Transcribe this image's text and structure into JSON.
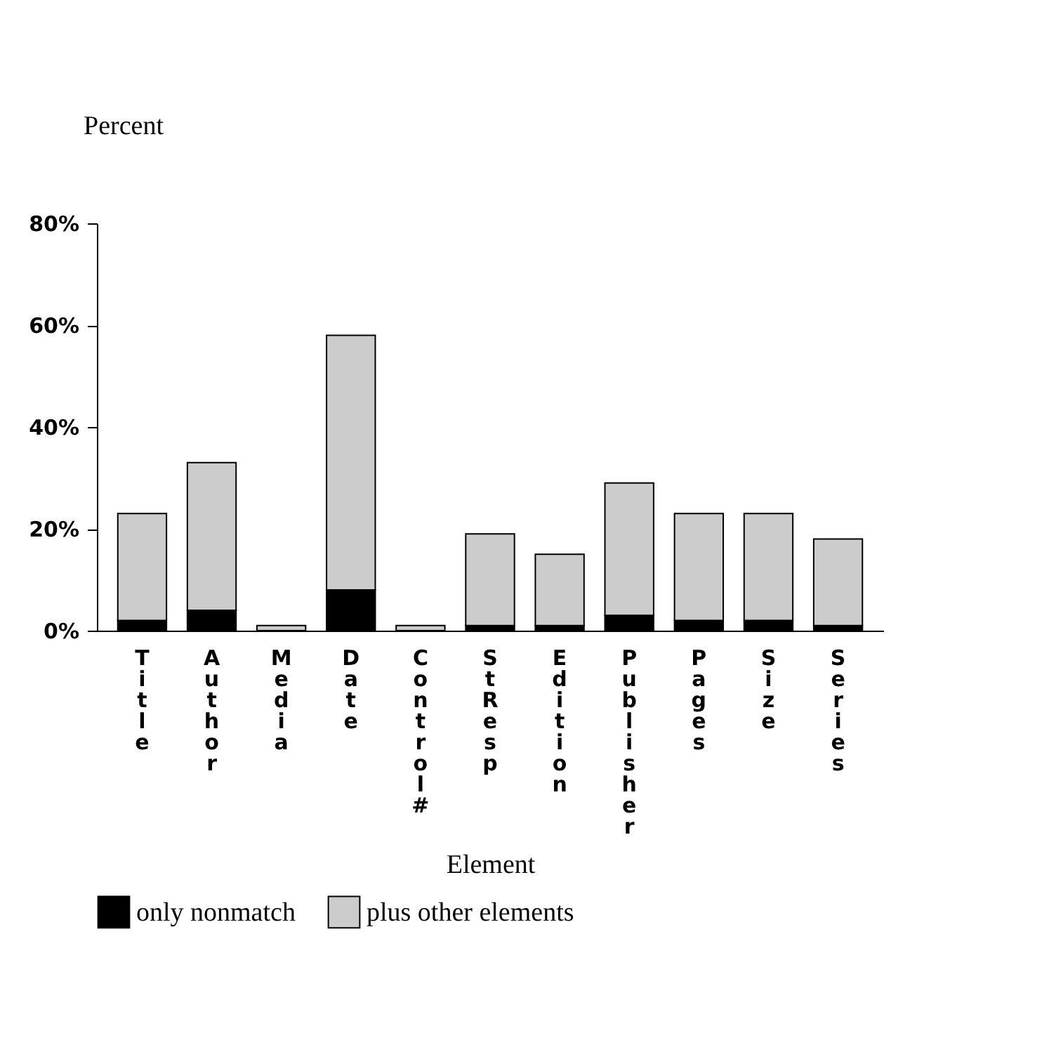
{
  "chart_data": {
    "type": "bar",
    "stacked": true,
    "xlabel": "Element",
    "ylabel": "Percent",
    "categories": [
      "Title",
      "Author",
      "Media",
      "Date",
      "Control #",
      "St Resp",
      "Edition",
      "Publisher",
      "Pages",
      "Size",
      "Series"
    ],
    "series": [
      {
        "name": "only nonmatch",
        "color": "#000000",
        "values": [
          2,
          4,
          0,
          8,
          0,
          1,
          1,
          3,
          2,
          2,
          1
        ]
      },
      {
        "name": "plus other elements",
        "color": "#cccccc",
        "values": [
          21,
          29,
          1,
          50,
          1,
          18,
          14,
          26,
          21,
          21,
          17
        ]
      }
    ],
    "ylim": [
      0,
      80
    ],
    "yticks": [
      {
        "value": 0,
        "label": "0%"
      },
      {
        "value": 20,
        "label": "20%"
      },
      {
        "value": 40,
        "label": "40%"
      },
      {
        "value": 60,
        "label": "60%"
      },
      {
        "value": 80,
        "label": "80%"
      }
    ],
    "grid": false,
    "legend": "bottom"
  }
}
